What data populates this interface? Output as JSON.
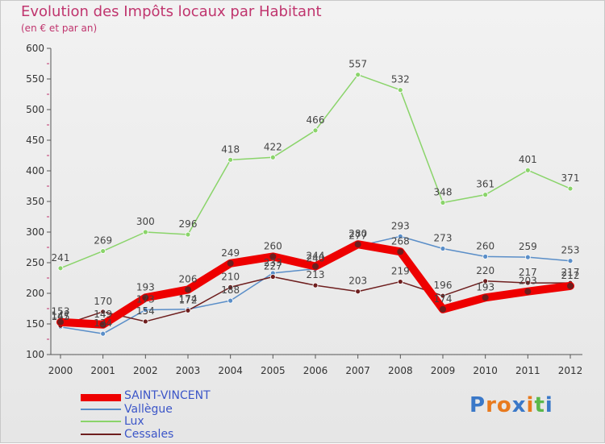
{
  "header": {
    "title": "Evolution des Impôts locaux par Habitant",
    "subtitle": "(en € et par an)"
  },
  "logo": {
    "letters": [
      "P",
      "r",
      "o",
      "x",
      "i",
      "t",
      "i"
    ]
  },
  "colors": {
    "accent": "#c0356e",
    "saint_vincent": "#ee0000",
    "vallegue": "#5a8ec8",
    "lux": "#8ad46a",
    "cessales": "#6e1e1e",
    "logo_letters": [
      "#3a78c8",
      "#e87a1e",
      "#e87a1e",
      "#3a78c8",
      "#e87a1e",
      "#5ab84a",
      "#3a78c8"
    ]
  },
  "chart_data": {
    "type": "line",
    "title": "Evolution des Impôts locaux par Habitant",
    "subtitle": "(en € et par an)",
    "xlabel": "",
    "ylabel": "",
    "ylim": [
      100,
      600
    ],
    "yticks": [
      100,
      150,
      200,
      250,
      300,
      350,
      400,
      450,
      500,
      550,
      600
    ],
    "grid": false,
    "legend_position": "bottom-left",
    "x": [
      "2000",
      "2001",
      "2002",
      "2003",
      "2004",
      "2005",
      "2006",
      "2007",
      "2008",
      "2009",
      "2010",
      "2011",
      "2012"
    ],
    "series": [
      {
        "name": "SAINT-VINCENT",
        "color": "#ee0000",
        "style": "thick",
        "values": [
          153,
          149,
          193,
          206,
          249,
          260,
          244,
          280,
          268,
          174,
          193,
          203,
          212
        ]
      },
      {
        "name": "Vallègue",
        "color": "#5a8ec8",
        "style": "thin",
        "values": [
          145,
          134,
          173,
          174,
          188,
          233,
          240,
          277,
          293,
          273,
          260,
          259,
          253
        ]
      },
      {
        "name": "Lux",
        "color": "#8ad46a",
        "style": "thin",
        "values": [
          241,
          269,
          300,
          296,
          418,
          422,
          466,
          557,
          532,
          348,
          361,
          401,
          371
        ]
      },
      {
        "name": "Cessales",
        "color": "#6e1e1e",
        "style": "thin",
        "values": [
          147,
          170,
          154,
          172,
          210,
          227,
          213,
          203,
          219,
          196,
          220,
          217,
          217
        ]
      }
    ]
  }
}
